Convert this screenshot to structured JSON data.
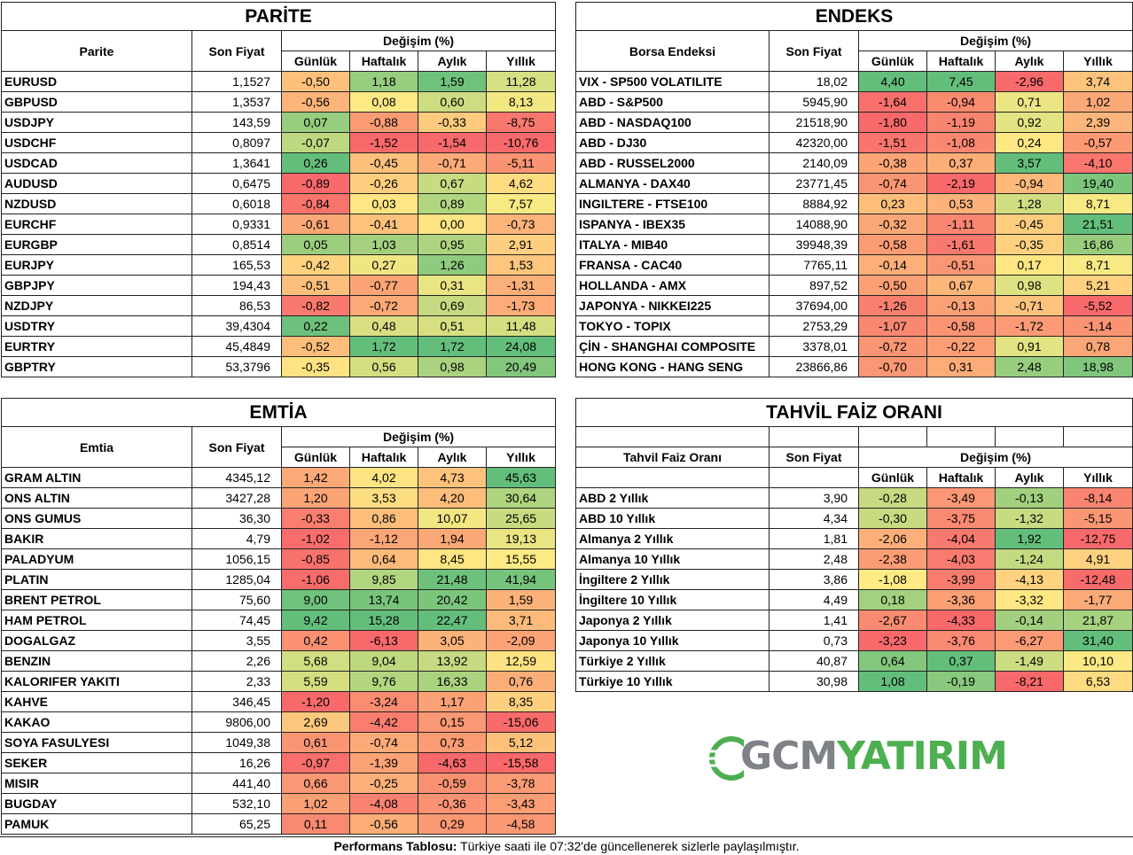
{
  "parite": {
    "title": "PARİTE",
    "col_name": "Parite",
    "col_price": "Son Fiyat",
    "col_change": "Değişim (%)",
    "cols": [
      "Günlük",
      "Haftalık",
      "Aylık",
      "Yıllık"
    ],
    "rows": [
      [
        "EURUSD",
        "1,1527",
        "-0,50",
        "1,18",
        "1,59",
        "11,28"
      ],
      [
        "GBPUSD",
        "1,3537",
        "-0,56",
        "0,08",
        "0,60",
        "8,13"
      ],
      [
        "USDJPY",
        "143,59",
        "0,07",
        "-0,88",
        "-0,33",
        "-8,75"
      ],
      [
        "USDCHF",
        "0,8097",
        "-0,07",
        "-1,52",
        "-1,54",
        "-10,76"
      ],
      [
        "USDCAD",
        "1,3641",
        "0,26",
        "-0,45",
        "-0,71",
        "-5,11"
      ],
      [
        "AUDUSD",
        "0,6475",
        "-0,89",
        "-0,26",
        "0,67",
        "4,62"
      ],
      [
        "NZDUSD",
        "0,6018",
        "-0,84",
        "0,03",
        "0,89",
        "7,57"
      ],
      [
        "EURCHF",
        "0,9331",
        "-0,61",
        "-0,41",
        "0,00",
        "-0,73"
      ],
      [
        "EURGBP",
        "0,8514",
        "0,05",
        "1,03",
        "0,95",
        "2,91"
      ],
      [
        "EURJPY",
        "165,53",
        "-0,42",
        "0,27",
        "1,26",
        "1,53"
      ],
      [
        "GBPJPY",
        "194,43",
        "-0,51",
        "-0,77",
        "0,31",
        "-1,31"
      ],
      [
        "NZDJPY",
        "86,53",
        "-0,82",
        "-0,72",
        "0,69",
        "-1,73"
      ],
      [
        "USDTRY",
        "39,4304",
        "0,22",
        "0,48",
        "0,51",
        "11,48"
      ],
      [
        "EURTRY",
        "45,4849",
        "-0,52",
        "1,72",
        "1,72",
        "24,08"
      ],
      [
        "GBPTRY",
        "53,3796",
        "-0,35",
        "0,56",
        "0,98",
        "20,49"
      ]
    ]
  },
  "endeks": {
    "title": "ENDEKS",
    "col_name": "Borsa Endeksi",
    "col_price": "Son Fiyat",
    "col_change": "Değişim (%)",
    "cols": [
      "Günlük",
      "Haftalık",
      "Aylık",
      "Yıllık"
    ],
    "rows": [
      [
        "VIX  - SP500 VOLATILITE",
        "18,02",
        "4,40",
        "7,45",
        "-2,96",
        "3,74"
      ],
      [
        "ABD - S&P500",
        "5945,90",
        "-1,64",
        "-0,94",
        "0,71",
        "1,02"
      ],
      [
        "ABD - NASDAQ100",
        "21518,90",
        "-1,80",
        "-1,19",
        "0,92",
        "2,39"
      ],
      [
        "ABD - DJ30",
        "42320,00",
        "-1,51",
        "-1,08",
        "0,24",
        "-0,57"
      ],
      [
        "ABD - RUSSEL2000",
        "2140,09",
        "-0,38",
        "0,37",
        "3,57",
        "-4,10"
      ],
      [
        "ALMANYA - DAX40",
        "23771,45",
        "-0,74",
        "-2,19",
        "-0,94",
        "19,40"
      ],
      [
        "INGILTERE - FTSE100",
        "8884,92",
        "0,23",
        "0,53",
        "1,28",
        "8,71"
      ],
      [
        "ISPANYA - IBEX35",
        "14088,90",
        "-0,32",
        "-1,11",
        "-0,45",
        "21,51"
      ],
      [
        "ITALYA - MIB40",
        "39948,39",
        "-0,58",
        "-1,61",
        "-0,35",
        "16,86"
      ],
      [
        "FRANSA - CAC40",
        "7765,11",
        "-0,14",
        "-0,51",
        "0,17",
        "8,71"
      ],
      [
        "HOLLANDA - AMX",
        "897,52",
        "-0,50",
        "0,67",
        "0,98",
        "5,21"
      ],
      [
        "JAPONYA - NIKKEI225",
        "37694,00",
        "-1,26",
        "-0,13",
        "-0,71",
        "-5,52"
      ],
      [
        "TOKYO - TOPIX",
        "2753,29",
        "-1,07",
        "-0,58",
        "-1,72",
        "-1,14"
      ],
      [
        "ÇİN - SHANGHAI COMPOSITE",
        "3378,01",
        "-0,72",
        "-0,22",
        "0,91",
        "0,78"
      ],
      [
        "HONG KONG - HANG SENG",
        "23866,86",
        "-0,70",
        "0,31",
        "2,48",
        "18,98"
      ]
    ]
  },
  "emtia": {
    "title": "EMTİA",
    "col_name": "Emtia",
    "col_price": "Son Fiyat",
    "col_change": "Değişim (%)",
    "cols": [
      "Günlük",
      "Haftalık",
      "Aylık",
      "Yıllık"
    ],
    "rows": [
      [
        "GRAM ALTIN",
        "4345,12",
        "1,42",
        "4,02",
        "4,73",
        "45,63"
      ],
      [
        "ONS ALTIN",
        "3427,28",
        "1,20",
        "3,53",
        "4,20",
        "30,64"
      ],
      [
        "ONS GUMUS",
        "36,30",
        "-0,33",
        "0,86",
        "10,07",
        "25,65"
      ],
      [
        "BAKIR",
        "4,79",
        "-1,02",
        "-1,12",
        "1,94",
        "19,13"
      ],
      [
        "PALADYUM",
        "1056,15",
        "-0,85",
        "0,64",
        "8,45",
        "15,55"
      ],
      [
        "PLATIN",
        "1285,04",
        "-1,06",
        "9,85",
        "21,48",
        "41,94"
      ],
      [
        "BRENT PETROL",
        "75,60",
        "9,00",
        "13,74",
        "20,42",
        "1,59"
      ],
      [
        "HAM PETROL",
        "74,45",
        "9,42",
        "15,28",
        "22,47",
        "3,71"
      ],
      [
        "DOGALGAZ",
        "3,55",
        "0,42",
        "-6,13",
        "3,05",
        "-2,09"
      ],
      [
        "BENZIN",
        "2,26",
        "5,68",
        "9,04",
        "13,92",
        "12,59"
      ],
      [
        "KALORIFER YAKITI",
        "2,33",
        "5,59",
        "9,76",
        "16,33",
        "0,76"
      ],
      [
        "KAHVE",
        "346,45",
        "-1,20",
        "-3,24",
        "1,17",
        "8,35"
      ],
      [
        "KAKAO",
        "9806,00",
        "2,69",
        "-4,42",
        "0,15",
        "-15,06"
      ],
      [
        "SOYA FASULYESI",
        "1049,38",
        "0,61",
        "-0,74",
        "0,73",
        "5,12"
      ],
      [
        "SEKER",
        "16,26",
        "-0,97",
        "-1,39",
        "-4,63",
        "-15,58"
      ],
      [
        "MISIR",
        "441,40",
        "0,66",
        "-0,25",
        "-0,59",
        "-3,78"
      ],
      [
        "BUGDAY",
        "532,10",
        "1,02",
        "-4,08",
        "-0,36",
        "-3,43"
      ],
      [
        "PAMUK",
        "65,25",
        "0,11",
        "-0,56",
        "0,29",
        "-4,58"
      ]
    ]
  },
  "tahvil": {
    "title": "TAHVİL FAİZ ORANI",
    "col_name": "Tahvil Faiz Oranı",
    "col_price": "Son Fiyat",
    "col_change": "Değişim (%)",
    "cols": [
      "Günlük",
      "Haftalık",
      "Aylık",
      "Yıllık"
    ],
    "rows": [
      [
        "ABD 2 Yıllık",
        "3,90",
        "-0,28",
        "-3,49",
        "-0,13",
        "-8,14"
      ],
      [
        "ABD 10 Yıllık",
        "4,34",
        "-0,30",
        "-3,75",
        "-1,32",
        "-5,15"
      ],
      [
        "Almanya 2 Yıllık",
        "1,81",
        "-2,06",
        "-4,04",
        "1,92",
        "-12,75"
      ],
      [
        "Almanya 10 Yıllık",
        "2,48",
        "-2,38",
        "-4,03",
        "-1,24",
        "4,91"
      ],
      [
        "İngiltere 2 Yıllık",
        "3,86",
        "-1,08",
        "-3,99",
        "-4,13",
        "-12,48"
      ],
      [
        "İngiltere 10 Yıllık",
        "4,49",
        "0,18",
        "-3,36",
        "-3,32",
        "-1,77"
      ],
      [
        "Japonya 2 Yıllık",
        "1,41",
        "-2,67",
        "-4,33",
        "-0,14",
        "21,87"
      ],
      [
        "Japonya 10 Yıllık",
        "0,73",
        "-3,23",
        "-3,76",
        "-6,27",
        "31,40"
      ],
      [
        "Türkiye 2 Yıllık",
        "40,87",
        "0,64",
        "0,37",
        "-1,49",
        "10,10"
      ],
      [
        "Türkiye 10 Yıllık",
        "30,98",
        "1,08",
        "-0,19",
        "-8,21",
        "6,53"
      ]
    ]
  },
  "logo": {
    "part1": "GCM",
    "part2": "YATIRIM"
  },
  "footer": {
    "bold": "Performans Tablosu:",
    "text": " Türkiye saati ile 07:32'de güncellenerek sizlerle paylaşılmıştır."
  }
}
